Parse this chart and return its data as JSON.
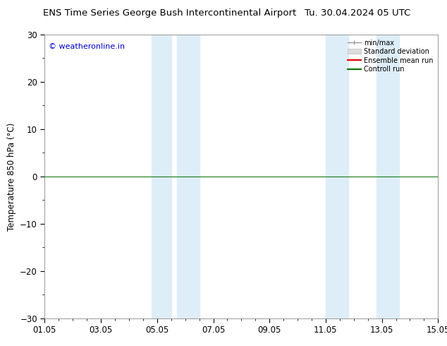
{
  "title_left": "ENS Time Series George Bush Intercontinental Airport",
  "title_right": "Tu. 30.04.2024 05 UTC",
  "ylabel": "Temperature 850 hPa (°C)",
  "ylim": [
    -30,
    30
  ],
  "yticks": [
    -30,
    -20,
    -10,
    0,
    10,
    20,
    30
  ],
  "xlim": [
    0,
    14
  ],
  "xtick_labels": [
    "01.05",
    "03.05",
    "05.05",
    "07.05",
    "09.05",
    "11.05",
    "13.05",
    "15.05"
  ],
  "xtick_positions": [
    0,
    2,
    4,
    6,
    8,
    10,
    12,
    14
  ],
  "watermark": "© weatheronline.in",
  "shaded_bands": [
    {
      "x_start": 3.8,
      "x_end": 4.5
    },
    {
      "x_start": 4.7,
      "x_end": 5.5
    },
    {
      "x_start": 10.0,
      "x_end": 10.8
    },
    {
      "x_start": 11.8,
      "x_end": 12.6
    }
  ],
  "band_color": "#ddeef8",
  "hline_y": 0,
  "hline_color": "#1a7a1a",
  "legend_entries": [
    {
      "label": "min/max",
      "color": "#aaaaaa",
      "lw": 1.2
    },
    {
      "label": "Standard deviation",
      "color": "#cccccc",
      "lw": 5
    },
    {
      "label": "Ensemble mean run",
      "color": "#dd0000",
      "lw": 1.5
    },
    {
      "label": "Controll run",
      "color": "#007700",
      "lw": 1.5
    }
  ],
  "background_color": "#ffffff",
  "title_fontsize": 9.5,
  "axis_fontsize": 8.5,
  "watermark_color": "#0000cc",
  "watermark_fontsize": 8,
  "spine_color": "#888888",
  "tick_color": "#000000"
}
